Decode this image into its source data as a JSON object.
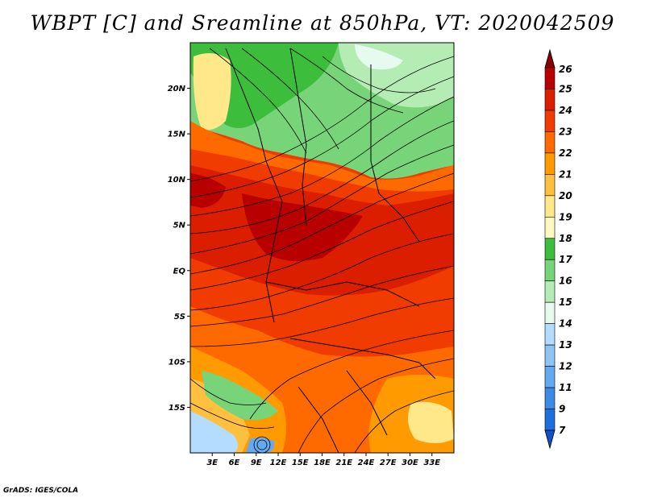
{
  "title": "WBPT [C] and Sreamline at 850hPa, VT: 2020042509",
  "credit": "GrADS: IGES/COLA",
  "map": {
    "region": "Equatorial Africa",
    "lon_range": [
      0,
      36
    ],
    "lat_range": [
      -20,
      25
    ],
    "lat_ticks": [
      {
        "value": 20,
        "label": "20N"
      },
      {
        "value": 15,
        "label": "15N"
      },
      {
        "value": 10,
        "label": "10N"
      },
      {
        "value": 5,
        "label": "5N"
      },
      {
        "value": 0,
        "label": "EQ"
      },
      {
        "value": -5,
        "label": "5S"
      },
      {
        "value": -10,
        "label": "10S"
      },
      {
        "value": -15,
        "label": "15S"
      }
    ],
    "lon_ticks": [
      {
        "value": 3,
        "label": "3E"
      },
      {
        "value": 6,
        "label": "6E"
      },
      {
        "value": 9,
        "label": "9E"
      },
      {
        "value": 12,
        "label": "12E"
      },
      {
        "value": 15,
        "label": "15E"
      },
      {
        "value": 18,
        "label": "18E"
      },
      {
        "value": 21,
        "label": "21E"
      },
      {
        "value": 24,
        "label": "24E"
      },
      {
        "value": 27,
        "label": "27E"
      },
      {
        "value": 30,
        "label": "30E"
      },
      {
        "value": 33,
        "label": "33E"
      }
    ]
  },
  "colorbar": {
    "levels": [
      {
        "label": "26",
        "color": "#8a0000"
      },
      {
        "label": "25",
        "color": "#b80000"
      },
      {
        "label": "24",
        "color": "#dc1e00"
      },
      {
        "label": "23",
        "color": "#f03c00"
      },
      {
        "label": "22",
        "color": "#ff6a00"
      },
      {
        "label": "21",
        "color": "#ff9a00"
      },
      {
        "label": "20",
        "color": "#ffc040"
      },
      {
        "label": "19",
        "color": "#ffe88a"
      },
      {
        "label": "18",
        "color": "#fff8c0"
      },
      {
        "label": "17",
        "color": "#3cbe3c"
      },
      {
        "label": "16",
        "color": "#78d478"
      },
      {
        "label": "15",
        "color": "#b4ecb4"
      },
      {
        "label": "14",
        "color": "#e6faf0"
      },
      {
        "label": "13",
        "color": "#b4dcff"
      },
      {
        "label": "12",
        "color": "#8ec4f4"
      },
      {
        "label": "11",
        "color": "#64aaf0"
      },
      {
        "label": "9",
        "color": "#3c8ce6"
      },
      {
        "label": "7",
        "color": "#1e6edc"
      }
    ],
    "bottom_color": "#1250c8"
  }
}
